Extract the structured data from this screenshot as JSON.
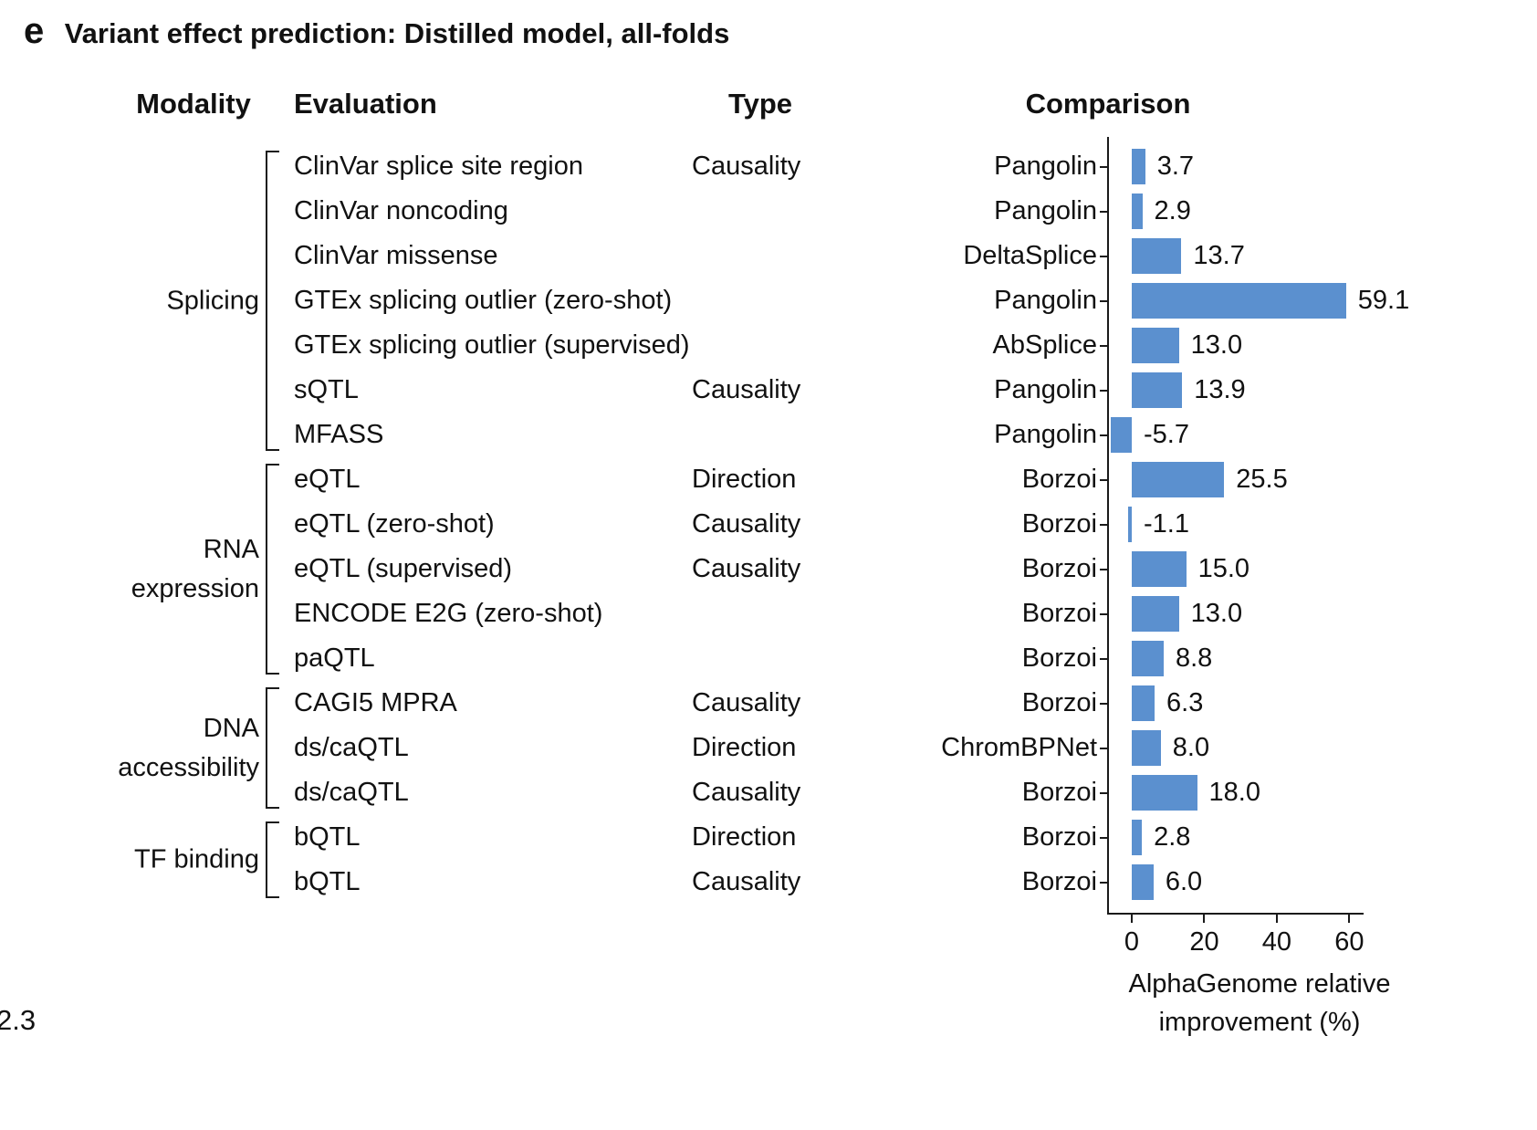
{
  "panel": {
    "letter": "e",
    "title": "Variant effect prediction: Distilled model, all-folds"
  },
  "columns": {
    "modality": "Modality",
    "evaluation": "Evaluation",
    "type": "Type",
    "comparison": "Comparison"
  },
  "corner_text": "2.3",
  "chart_data": {
    "type": "bar",
    "orientation": "horizontal",
    "bar_color": "#5b90cf",
    "axis_color": "#1a1a1a",
    "xlabel": "AlphaGenome relative improvement (%)",
    "xlabel_lines": [
      "AlphaGenome relative",
      "improvement (%)"
    ],
    "xticks": [
      0,
      20,
      40,
      60
    ],
    "xlim": [
      -6.8,
      64
    ],
    "value_unit": "%",
    "legend": "none",
    "grid": false,
    "groups": [
      {
        "label_lines": [
          "Splicing"
        ],
        "row_count": 7
      },
      {
        "label_lines": [
          "RNA",
          "expression"
        ],
        "row_count": 5
      },
      {
        "label_lines": [
          "DNA",
          "accessibility"
        ],
        "row_count": 3
      },
      {
        "label_lines": [
          "TF binding"
        ],
        "row_count": 2
      }
    ],
    "rows": [
      {
        "modality": "Splicing",
        "evaluation": "ClinVar splice site region",
        "type": "Causality",
        "comparison": "Pangolin",
        "value": 3.7
      },
      {
        "modality": "Splicing",
        "evaluation": "ClinVar noncoding",
        "type": "",
        "comparison": "Pangolin",
        "value": 2.9
      },
      {
        "modality": "Splicing",
        "evaluation": "ClinVar missense",
        "type": "",
        "comparison": "DeltaSplice",
        "value": 13.7
      },
      {
        "modality": "Splicing",
        "evaluation": "GTEx splicing outlier (zero-shot)",
        "type": "",
        "comparison": "Pangolin",
        "value": 59.1
      },
      {
        "modality": "Splicing",
        "evaluation": "GTEx splicing outlier (supervised)",
        "type": "",
        "comparison": "AbSplice",
        "value": 13.0
      },
      {
        "modality": "Splicing",
        "evaluation": "sQTL",
        "type": "Causality",
        "comparison": "Pangolin",
        "value": 13.9
      },
      {
        "modality": "Splicing",
        "evaluation": "MFASS",
        "type": "",
        "comparison": "Pangolin",
        "value": -5.7
      },
      {
        "modality": "RNA expression",
        "evaluation": "eQTL",
        "type": "Direction",
        "comparison": "Borzoi",
        "value": 25.5
      },
      {
        "modality": "RNA expression",
        "evaluation": "eQTL (zero-shot)",
        "type": "Causality",
        "comparison": "Borzoi",
        "value": -1.1
      },
      {
        "modality": "RNA expression",
        "evaluation": "eQTL (supervised)",
        "type": "Causality",
        "comparison": "Borzoi",
        "value": 15.0
      },
      {
        "modality": "RNA expression",
        "evaluation": "ENCODE E2G (zero-shot)",
        "type": "",
        "comparison": "Borzoi",
        "value": 13.0
      },
      {
        "modality": "RNA expression",
        "evaluation": "paQTL",
        "type": "",
        "comparison": "Borzoi",
        "value": 8.8
      },
      {
        "modality": "DNA accessibility",
        "evaluation": "CAGI5 MPRA",
        "type": "Causality",
        "comparison": "Borzoi",
        "value": 6.3
      },
      {
        "modality": "DNA accessibility",
        "evaluation": "ds/caQTL",
        "type": "Direction",
        "comparison": "ChromBPNet",
        "value": 8.0
      },
      {
        "modality": "DNA accessibility",
        "evaluation": "ds/caQTL",
        "type": "Causality",
        "comparison": "Borzoi",
        "value": 18.0
      },
      {
        "modality": "TF binding",
        "evaluation": "bQTL",
        "type": "Direction",
        "comparison": "Borzoi",
        "value": 2.8
      },
      {
        "modality": "TF binding",
        "evaluation": "bQTL",
        "type": "Causality",
        "comparison": "Borzoi",
        "value": 6.0
      }
    ]
  }
}
